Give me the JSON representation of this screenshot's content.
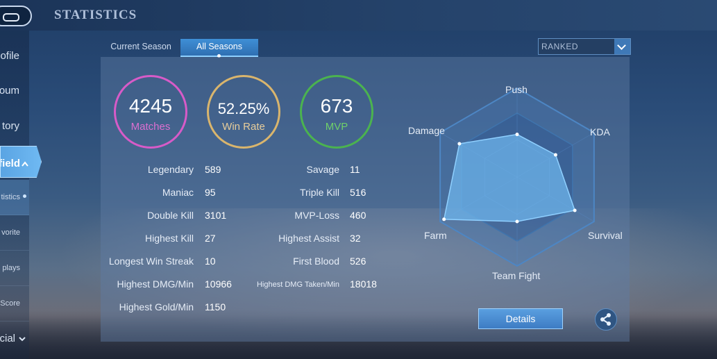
{
  "header": {
    "title": "STATISTICS"
  },
  "sidebar": {
    "items": [
      {
        "label": "ofile"
      },
      {
        "label": "oum"
      },
      {
        "label": "tory"
      },
      {
        "label": "field"
      },
      {
        "label": "tistics"
      },
      {
        "label": "vorite"
      },
      {
        "label": "plays"
      },
      {
        "label": "Score"
      },
      {
        "label": "ocial"
      }
    ]
  },
  "tabs": [
    {
      "label": "Current Season"
    },
    {
      "label": "All Seasons"
    }
  ],
  "filter": {
    "selected": "RANKED"
  },
  "summary": {
    "matches": {
      "value": "4245",
      "label": "Matches"
    },
    "win_rate": {
      "value": "52.25%",
      "label": "Win Rate"
    },
    "mvp": {
      "value": "673",
      "label": "MVP"
    }
  },
  "stats_left": [
    {
      "label": "Legendary",
      "value": "589"
    },
    {
      "label": "Maniac",
      "value": "95"
    },
    {
      "label": "Double Kill",
      "value": "3101"
    },
    {
      "label": "Highest Kill",
      "value": "27"
    },
    {
      "label": "Longest Win Streak",
      "value": "10"
    },
    {
      "label": "Highest DMG/Min",
      "value": "10966"
    },
    {
      "label": "Highest Gold/Min",
      "value": "1150"
    }
  ],
  "stats_right": [
    {
      "label": "Savage",
      "value": "11"
    },
    {
      "label": "Triple Kill",
      "value": "516"
    },
    {
      "label": "MVP-Loss",
      "value": "460"
    },
    {
      "label": "Highest Assist",
      "value": "32"
    },
    {
      "label": "First Blood",
      "value": "526"
    },
    {
      "label": "Highest DMG Taken/Min",
      "value": "18018"
    }
  ],
  "radar": {
    "axes": [
      "Push",
      "KDA",
      "Survival",
      "Team Fight",
      "Farm",
      "Damage"
    ],
    "values": [
      0.48,
      0.5,
      0.75,
      0.5,
      0.95,
      0.75
    ]
  },
  "actions": {
    "details_label": "Details"
  },
  "icons": {
    "share": "share-icon",
    "chevron_down": "chevron-down-icon",
    "chevron_up": "chevron-up-icon",
    "back": "back-icon"
  },
  "colors": {
    "matches": "#d75bc8",
    "win_rate": "#d9b56d",
    "mvp": "#4bb34f",
    "accent": "#5aa4e3"
  }
}
